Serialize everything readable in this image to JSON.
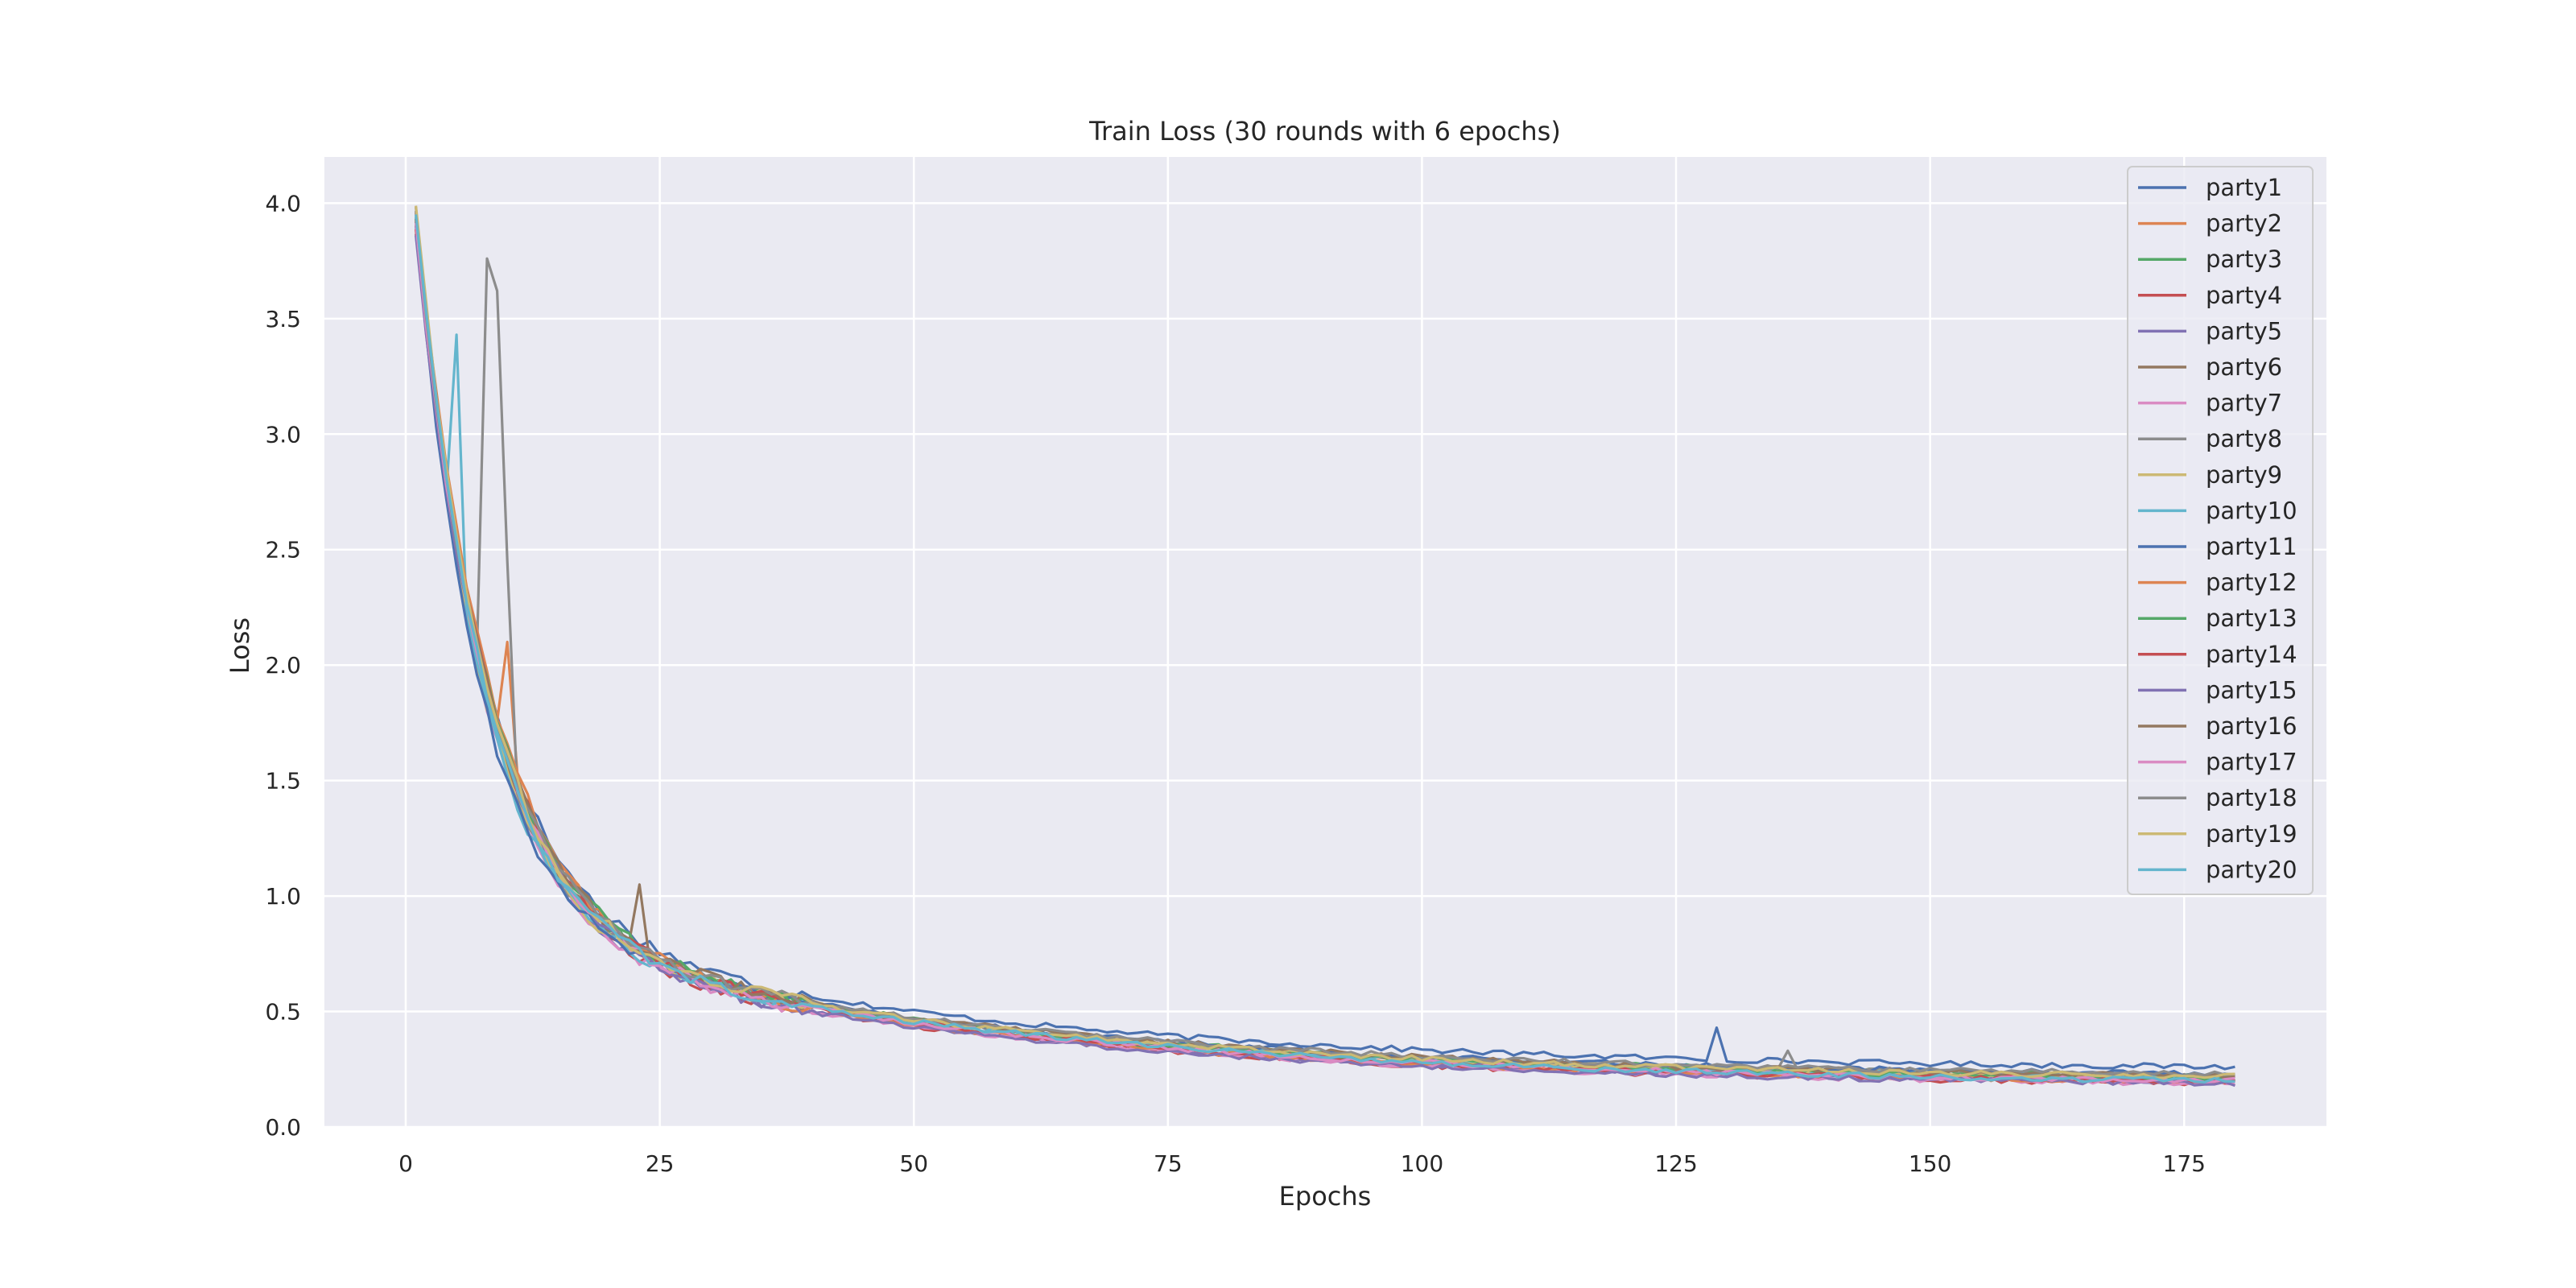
{
  "chart_data": {
    "type": "line",
    "title": "Train Loss (30 rounds with 6 epochs)",
    "xlabel": "Epochs",
    "ylabel": "Loss",
    "xlim": [
      -8,
      189
    ],
    "ylim": [
      0,
      4.2
    ],
    "xticks": [
      0,
      25,
      50,
      75,
      100,
      125,
      150,
      175
    ],
    "yticks": [
      0.0,
      0.5,
      1.0,
      1.5,
      2.0,
      2.5,
      3.0,
      3.5,
      4.0
    ],
    "xtick_labels": [
      "0",
      "25",
      "50",
      "75",
      "100",
      "125",
      "150",
      "175"
    ],
    "ytick_labels": [
      "0.0",
      "0.5",
      "1.0",
      "1.5",
      "2.0",
      "2.5",
      "3.0",
      "3.5",
      "4.0"
    ],
    "grid": true,
    "background": "#eaeaf2",
    "legend_position": "top-right",
    "x_range": [
      1,
      180
    ],
    "series": [
      {
        "name": "party1",
        "color": "#4c72b0",
        "y_start": 3.92,
        "y_end": 0.26,
        "spikes": [
          [
            129,
            0.43
          ]
        ]
      },
      {
        "name": "party2",
        "color": "#dd8452",
        "y_start": 3.95,
        "y_end": 0.21,
        "spikes": [
          [
            10,
            2.1
          ]
        ]
      },
      {
        "name": "party3",
        "color": "#55a868",
        "y_start": 3.9,
        "y_end": 0.22,
        "spikes": []
      },
      {
        "name": "party4",
        "color": "#c44e52",
        "y_start": 3.93,
        "y_end": 0.19,
        "spikes": []
      },
      {
        "name": "party5",
        "color": "#8172b3",
        "y_start": 3.88,
        "y_end": 0.2,
        "spikes": []
      },
      {
        "name": "party6",
        "color": "#937860",
        "y_start": 3.94,
        "y_end": 0.21,
        "spikes": [
          [
            23,
            1.05
          ]
        ]
      },
      {
        "name": "party7",
        "color": "#da8bc3",
        "y_start": 3.91,
        "y_end": 0.19,
        "spikes": []
      },
      {
        "name": "party8",
        "color": "#8c8c8c",
        "y_start": 3.96,
        "y_end": 0.22,
        "spikes": [
          [
            8,
            3.76
          ],
          [
            9,
            3.62
          ],
          [
            10,
            2.45
          ],
          [
            136,
            0.33
          ]
        ]
      },
      {
        "name": "party9",
        "color": "#ccb974",
        "y_start": 3.97,
        "y_end": 0.21,
        "spikes": []
      },
      {
        "name": "party10",
        "color": "#64b5cd",
        "y_start": 3.95,
        "y_end": 0.21,
        "spikes": [
          [
            5,
            3.43
          ]
        ]
      },
      {
        "name": "party11",
        "color": "#4c72b0",
        "y_start": 3.9,
        "y_end": 0.23,
        "spikes": []
      },
      {
        "name": "party12",
        "color": "#dd8452",
        "y_start": 3.92,
        "y_end": 0.2,
        "spikes": []
      },
      {
        "name": "party13",
        "color": "#55a868",
        "y_start": 3.89,
        "y_end": 0.21,
        "spikes": []
      },
      {
        "name": "party14",
        "color": "#c44e52",
        "y_start": 3.91,
        "y_end": 0.2,
        "spikes": []
      },
      {
        "name": "party15",
        "color": "#8172b3",
        "y_start": 3.87,
        "y_end": 0.19,
        "spikes": []
      },
      {
        "name": "party16",
        "color": "#937860",
        "y_start": 3.93,
        "y_end": 0.22,
        "spikes": []
      },
      {
        "name": "party17",
        "color": "#da8bc3",
        "y_start": 3.9,
        "y_end": 0.2,
        "spikes": []
      },
      {
        "name": "party18",
        "color": "#8c8c8c",
        "y_start": 3.94,
        "y_end": 0.23,
        "spikes": []
      },
      {
        "name": "party19",
        "color": "#ccb974",
        "y_start": 4.01,
        "y_end": 0.22,
        "spikes": []
      },
      {
        "name": "party20",
        "color": "#64b5cd",
        "y_start": 3.96,
        "y_end": 0.2,
        "spikes": []
      }
    ]
  }
}
